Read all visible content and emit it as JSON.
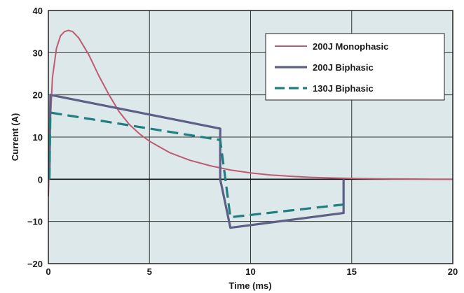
{
  "chart_data": {
    "type": "line",
    "title": "",
    "xlabel": "Time (ms)",
    "ylabel": "Current (A)",
    "xlim": [
      0,
      20
    ],
    "ylim": [
      -20,
      40
    ],
    "xticks": [
      0,
      5,
      10,
      15,
      20
    ],
    "yticks": [
      -20,
      -10,
      0,
      10,
      20,
      30,
      40
    ],
    "grid": true,
    "zero_line": true,
    "legend_position": "top-right",
    "background_color": "#dce8ea",
    "series": [
      {
        "name": "200J Monophasic",
        "color": "#c05a70",
        "style": "solid",
        "x": [
          0,
          0.1,
          0.2,
          0.4,
          0.6,
          0.8,
          1.0,
          1.2,
          1.5,
          2.0,
          2.5,
          3.0,
          3.5,
          4.0,
          4.5,
          5.0,
          6.0,
          7.0,
          8.0,
          9.0,
          10.0,
          11.0,
          12.0,
          13.0,
          14.0,
          15.0,
          16.0,
          17.0,
          18.0,
          19.0,
          20.0
        ],
        "y": [
          -4,
          14,
          24,
          31,
          34,
          35,
          35.3,
          35,
          33.5,
          29.5,
          24.5,
          20,
          16,
          13,
          10.8,
          9,
          6.3,
          4.5,
          3.2,
          2.2,
          1.5,
          1,
          0.7,
          0.45,
          0.3,
          0.2,
          0.12,
          0.08,
          0.05,
          0.02,
          0
        ]
      },
      {
        "name": "200J Biphasic",
        "color": "#5e5f86",
        "style": "solid",
        "x": [
          0.05,
          0.1,
          8.5,
          8.5,
          9.0,
          14.6,
          14.6
        ],
        "y": [
          0,
          20,
          12,
          0,
          -11.5,
          -8,
          0
        ]
      },
      {
        "name": "130J Biphasic",
        "color": "#1f7f7f",
        "style": "dashed",
        "x": [
          0.05,
          0.1,
          8.5,
          9.0,
          14.6
        ],
        "y": [
          0,
          15.8,
          9.3,
          -9,
          -6
        ]
      }
    ]
  }
}
